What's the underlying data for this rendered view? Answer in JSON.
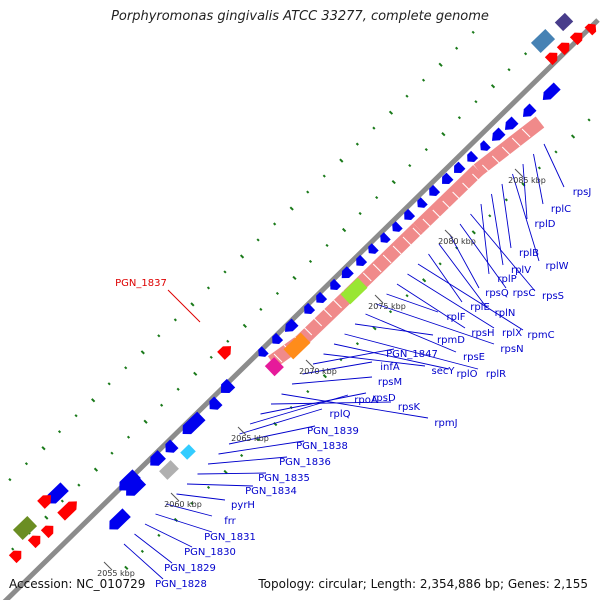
{
  "title": "Porphyromonas gingivalis ATCC 33277, complete genome",
  "footer": {
    "accession": "Accession: NC_010729",
    "topology": "Topology: circular; Length: 2,354,886 bp; Genes: 2,155"
  },
  "colors": {
    "backbone": "#8c8c8c",
    "gene_forward": "#ff0000",
    "gene_reverse": "#0000ee",
    "ribosomal_block": "#f08a8a",
    "label": "#0000cc",
    "highlight_label": "#dd0000",
    "gc_skew_tick": "#1a7a1a",
    "scale_text": "#333333"
  },
  "scale_ticks": [
    "2055 kbp",
    "2060 kbp",
    "2065 kbp",
    "2070 kbp",
    "2075 kbp",
    "2080 kbp",
    "2085 kbp"
  ],
  "highlighted_gene": "PGN_1837",
  "gene_labels": [
    "PGN_1828",
    "PGN_1829",
    "PGN_1830",
    "PGN_1831",
    "frr",
    "pyrH",
    "PGN_1834",
    "PGN_1835",
    "PGN_1836",
    "PGN_1838",
    "PGN_1839",
    "rplQ",
    "rpoA",
    "rpsD",
    "rpsK",
    "rpmJ",
    "rpsM",
    "infA",
    "PGN_1847",
    "secY",
    "rplO",
    "rplR",
    "rpmD",
    "rpsE",
    "rpsN",
    "rplF",
    "rpsH",
    "rplX",
    "rpmC",
    "rplE",
    "rplN",
    "rpsQ",
    "rpsC",
    "rpsS",
    "rplP",
    "rplV",
    "rplB",
    "rplW",
    "rplD",
    "rplC",
    "rpsJ"
  ]
}
